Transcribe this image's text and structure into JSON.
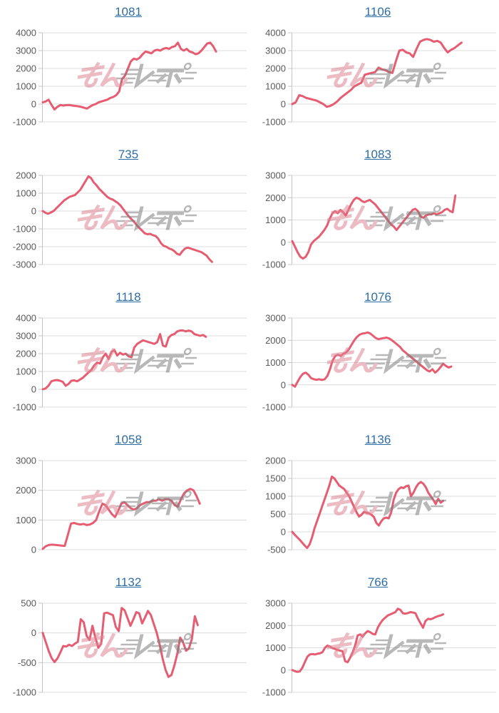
{
  "page": {
    "background": "#ffffff"
  },
  "style": {
    "line_color": "#e65c70",
    "title_link_color": "#2e6da4",
    "grid_color": "#dcdcdc",
    "axis_color": "#c4c4c4",
    "tick_label_color": "#595959"
  },
  "watermark": {
    "text": "みんレポ",
    "pink_part": "みん",
    "gray_part": "レポ",
    "pink_color": "#de8493",
    "gray_color": "#7f7f7f",
    "opacity": 0.55
  },
  "chart_data": [
    {
      "type": "line",
      "title": "1081",
      "ymax": 4000,
      "ymin": -1000,
      "ystep": 1000,
      "grid": true,
      "x_extent_frac": 0.85,
      "values": [
        100,
        150,
        250,
        -50,
        -300,
        -150,
        -50,
        -80,
        -60,
        -50,
        -80,
        -100,
        -120,
        -150,
        -200,
        -250,
        -150,
        -50,
        0,
        100,
        150,
        200,
        250,
        350,
        400,
        500,
        700,
        1400,
        1600,
        2000,
        2400,
        2550,
        2500,
        2600,
        2800,
        2950,
        2900,
        2850,
        3000,
        3050,
        3000,
        3100,
        3150,
        3100,
        3200,
        3250,
        3450,
        3100,
        3000,
        3100,
        2950,
        2900,
        2800,
        2850,
        3000,
        3200,
        3400,
        3450,
        3250,
        2950
      ]
    },
    {
      "type": "line",
      "title": "1106",
      "ymax": 4000,
      "ymin": -1000,
      "ystep": 1000,
      "grid": true,
      "x_extent_frac": 0.83,
      "values": [
        0,
        100,
        500,
        450,
        350,
        300,
        250,
        200,
        100,
        0,
        -150,
        -100,
        0,
        150,
        350,
        500,
        650,
        800,
        1000,
        1100,
        1200,
        1650,
        1700,
        1750,
        1800,
        2050,
        1950,
        1900,
        1800,
        1750,
        2400,
        3000,
        3050,
        2900,
        2850,
        2650,
        3100,
        3500,
        3600,
        3650,
        3600,
        3500,
        3550,
        3450,
        3150,
        2900,
        3050,
        3150,
        3300,
        3450
      ]
    },
    {
      "type": "line",
      "title": "735",
      "ymax": 2000,
      "ymin": -3000,
      "ystep": 1000,
      "grid": true,
      "x_extent_frac": 0.83,
      "values": [
        0,
        -100,
        -150,
        -80,
        0,
        150,
        300,
        450,
        600,
        700,
        800,
        850,
        900,
        1050,
        1200,
        1450,
        1700,
        1950,
        1850,
        1600,
        1450,
        1250,
        1100,
        950,
        800,
        700,
        650,
        550,
        450,
        300,
        100,
        -100,
        -300,
        -450,
        -600,
        -800,
        -950,
        -1100,
        -1250,
        -1300,
        -1280,
        -1350,
        -1400,
        -1550,
        -1800,
        -1950,
        -2000,
        -2100,
        -2150,
        -2250,
        -2400,
        -2450,
        -2250,
        -2100,
        -2050,
        -2100,
        -2150,
        -2200,
        -2250,
        -2300,
        -2400,
        -2500,
        -2700,
        -2850
      ]
    },
    {
      "type": "line",
      "title": "1083",
      "ymax": 3000,
      "ymin": -1000,
      "ystep": 1000,
      "grid": true,
      "x_extent_frac": 0.8,
      "values": [
        50,
        -200,
        -450,
        -650,
        -730,
        -650,
        -450,
        -100,
        50,
        150,
        250,
        400,
        550,
        750,
        1050,
        1300,
        1400,
        1300,
        1450,
        1350,
        1200,
        1450,
        1700,
        1900,
        2000,
        1950,
        1850,
        1800,
        1850,
        1900,
        1800,
        1700,
        1550,
        1400,
        1250,
        1100,
        950,
        800,
        700,
        550,
        700,
        850,
        1000,
        1150,
        1300,
        1450,
        1500,
        1400,
        1150,
        1100,
        1200,
        1250,
        1250,
        1300,
        1250,
        1300,
        1350,
        1450,
        1500,
        1400,
        1350,
        2100
      ]
    },
    {
      "type": "line",
      "title": "1118",
      "ymax": 4000,
      "ymin": -1000,
      "ystep": 1000,
      "grid": true,
      "x_extent_frac": 0.8,
      "values": [
        0,
        50,
        200,
        450,
        500,
        520,
        480,
        420,
        200,
        300,
        480,
        500,
        450,
        550,
        650,
        800,
        950,
        1100,
        1350,
        1500,
        1450,
        1800,
        2000,
        1700,
        2100,
        2200,
        1900,
        2050,
        1950,
        2000,
        1850,
        1800,
        2350,
        2550,
        2650,
        2750,
        2700,
        2650,
        2600,
        2550,
        2650,
        3100,
        2450,
        2400,
        2900,
        3050,
        3100,
        3250,
        3300,
        3300,
        3250,
        3300,
        3250,
        3100,
        3050,
        3000,
        3050,
        2950
      ]
    },
    {
      "type": "line",
      "title": "1076",
      "ymax": 3000,
      "ymin": -1000,
      "ystep": 1000,
      "grid": true,
      "x_extent_frac": 0.78,
      "values": [
        0,
        -80,
        150,
        350,
        500,
        550,
        450,
        300,
        250,
        230,
        250,
        220,
        250,
        400,
        700,
        1100,
        1300,
        1350,
        1300,
        1400,
        1450,
        1600,
        1800,
        2000,
        2150,
        2250,
        2300,
        2320,
        2350,
        2300,
        2200,
        2100,
        2050,
        2080,
        2100,
        2120,
        2080,
        2000,
        1900,
        1800,
        1700,
        1550,
        1450,
        1350,
        1250,
        1150,
        1050,
        950,
        850,
        750,
        650,
        600,
        700,
        550,
        650,
        800,
        950,
        850,
        780,
        820
      ]
    },
    {
      "type": "line",
      "title": "1058",
      "ymax": 3000,
      "ymin": 0,
      "ystep": 1000,
      "grid": true,
      "x_extent_frac": 0.77,
      "values": [
        30,
        120,
        160,
        170,
        160,
        150,
        140,
        130,
        500,
        880,
        900,
        870,
        850,
        870,
        830,
        850,
        900,
        1000,
        1300,
        1550,
        1500,
        1350,
        1200,
        1100,
        1300,
        1550,
        1600,
        1500,
        1400,
        1350,
        1400,
        1500,
        1550,
        1600,
        1600,
        1650,
        1650,
        1700,
        1650,
        1700,
        1700,
        1650,
        1500,
        1450,
        1700,
        1900,
        2000,
        2050,
        2000,
        1800,
        1550
      ]
    },
    {
      "type": "line",
      "title": "1136",
      "ymax": 2000,
      "ymin": -500,
      "ystep": 500,
      "grid": true,
      "x_extent_frac": 0.74,
      "values": [
        0,
        -80,
        -150,
        -220,
        -300,
        -380,
        -450,
        -350,
        -150,
        100,
        300,
        500,
        700,
        900,
        1100,
        1300,
        1550,
        1500,
        1400,
        1300,
        1250,
        1200,
        1100,
        1000,
        850,
        700,
        550,
        430,
        480,
        560,
        540,
        520,
        480,
        420,
        250,
        180,
        300,
        380,
        400,
        380,
        550,
        900,
        1100,
        1200,
        1250,
        1230,
        1280,
        1300,
        1000,
        1100,
        1250,
        1350,
        1400,
        1350,
        1250,
        1100,
        1000,
        900,
        780,
        930,
        820,
        870
      ]
    },
    {
      "type": "line",
      "title": "1132",
      "ymax": 500,
      "ymin": -1000,
      "ystep": 500,
      "grid": true,
      "x_extent_frac": 0.76,
      "values": [
        0,
        -150,
        -300,
        -420,
        -490,
        -430,
        -330,
        -220,
        -230,
        -200,
        -220,
        -180,
        -150,
        230,
        180,
        -50,
        -120,
        120,
        -80,
        -250,
        -180,
        330,
        340,
        320,
        300,
        100,
        30,
        420,
        380,
        250,
        120,
        230,
        350,
        330,
        160,
        260,
        370,
        300,
        150,
        0,
        -200,
        -430,
        -620,
        -740,
        -710,
        -550,
        -350,
        -80,
        -160,
        -300,
        -260,
        -100,
        280,
        130
      ]
    },
    {
      "type": "line",
      "title": "766",
      "ymax": 3000,
      "ymin": -1000,
      "ystep": 1000,
      "grid": true,
      "x_extent_frac": 0.74,
      "values": [
        0,
        -50,
        -80,
        -60,
        100,
        350,
        600,
        700,
        720,
        700,
        730,
        750,
        800,
        1000,
        1100,
        1050,
        980,
        950,
        900,
        870,
        850,
        400,
        350,
        550,
        800,
        1100,
        1550,
        1600,
        1500,
        1650,
        1750,
        1700,
        1620,
        1600,
        1900,
        2100,
        2250,
        2350,
        2450,
        2500,
        2550,
        2600,
        2750,
        2700,
        2550,
        2530,
        2560,
        2600,
        2580,
        2550,
        2300,
        2100,
        1900,
        2200,
        2300,
        2280,
        2320,
        2380,
        2420,
        2450,
        2500
      ]
    }
  ]
}
